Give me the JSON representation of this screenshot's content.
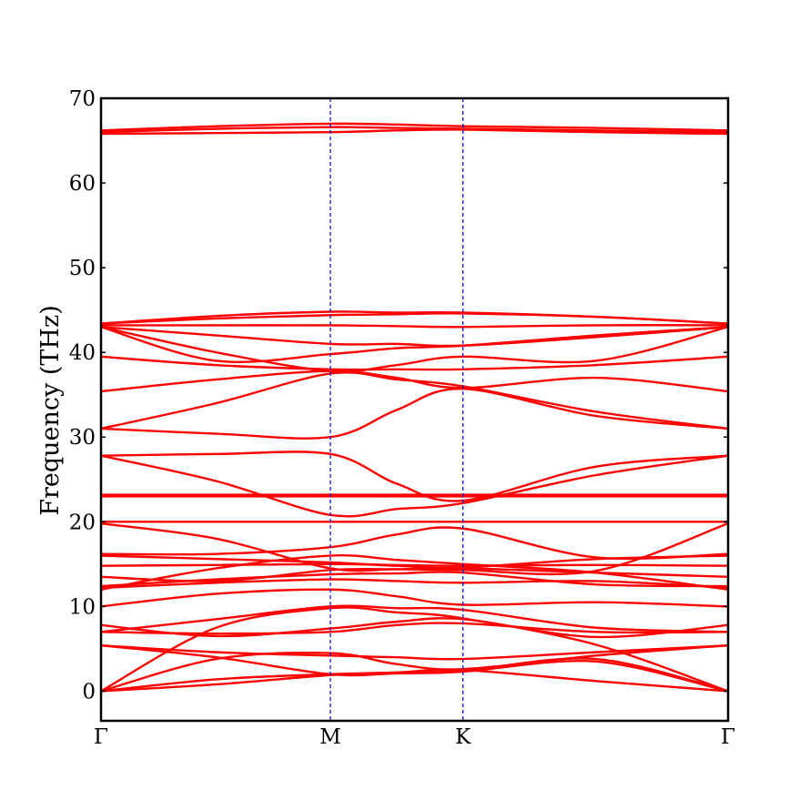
{
  "chart_data": {
    "type": "line",
    "title": "",
    "xlabel": "",
    "ylabel": "Frequency (THz)",
    "ylim": [
      -3.5,
      70
    ],
    "xlim": [
      0,
      4.73
    ],
    "yticks": [
      0,
      10,
      20,
      30,
      40,
      50,
      60,
      70
    ],
    "grid": false,
    "legend": "none",
    "high_symmetry_points": [
      {
        "label": "Γ",
        "x": 0
      },
      {
        "label": "M",
        "x": 1.73
      },
      {
        "label": "K",
        "x": 2.73
      },
      {
        "label": "Γ",
        "x": 4.73
      }
    ],
    "colors": {
      "bands": "#ff0000",
      "kpoint_lines": "#0000cc",
      "axes": "#000000"
    },
    "series": [
      {
        "x": [
          0,
          0.87,
          1.73,
          2.23,
          2.73,
          3.73,
          4.73
        ],
        "values": [
          0,
          0.8,
          1.9,
          2.2,
          2.5,
          1.2,
          0
        ]
      },
      {
        "x": [
          0,
          0.87,
          1.73,
          2.23,
          2.73,
          3.73,
          4.73
        ],
        "values": [
          0,
          1.4,
          2.0,
          2.2,
          2.4,
          3.8,
          0
        ]
      },
      {
        "x": [
          0,
          0.87,
          1.73,
          2.23,
          2.73,
          3.73,
          4.73
        ],
        "values": [
          0,
          3.8,
          4.5,
          3.2,
          2.6,
          4.2,
          5.4
        ]
      },
      {
        "x": [
          0,
          0.87,
          1.73,
          2.23,
          2.73,
          3.73,
          4.73
        ],
        "values": [
          5.4,
          4.6,
          4.2,
          4.0,
          3.8,
          4.6,
          5.4
        ]
      },
      {
        "x": [
          0,
          0.87,
          1.73,
          2.23,
          2.73,
          3.73,
          4.73
        ],
        "values": [
          5.4,
          4.0,
          2.0,
          2.1,
          2.3,
          3.5,
          0
        ]
      },
      {
        "x": [
          0,
          0.87,
          1.73,
          2.23,
          2.73,
          3.73,
          4.73
        ],
        "values": [
          7.8,
          6.5,
          7.4,
          8.2,
          8.5,
          6.4,
          7.8
        ]
      },
      {
        "x": [
          0,
          0.87,
          1.73,
          2.23,
          2.73,
          3.73,
          4.73
        ],
        "values": [
          7.0,
          6.8,
          7.0,
          7.8,
          8.0,
          7.0,
          7.0
        ]
      },
      {
        "x": [
          0,
          0.87,
          1.73,
          2.23,
          2.73,
          3.73,
          4.73
        ],
        "values": [
          0,
          7.5,
          9.8,
          9.3,
          8.6,
          5.5,
          0
        ]
      },
      {
        "x": [
          0,
          0.87,
          1.73,
          2.23,
          2.73,
          3.73,
          4.73
        ],
        "values": [
          7.0,
          8.5,
          10.0,
          9.8,
          9.6,
          7.5,
          7.0
        ]
      },
      {
        "x": [
          0,
          0.87,
          1.73,
          2.23,
          2.73,
          3.73,
          4.73
        ],
        "values": [
          10.0,
          11.5,
          12.0,
          11.2,
          10.2,
          10.5,
          10.0
        ]
      },
      {
        "x": [
          0,
          0.87,
          1.73,
          2.23,
          2.73,
          3.73,
          4.73
        ],
        "values": [
          12.2,
          12.8,
          13.2,
          13.0,
          12.8,
          13.0,
          12.2
        ]
      },
      {
        "x": [
          0,
          0.87,
          1.73,
          2.23,
          2.73,
          3.73,
          4.73
        ],
        "values": [
          12.4,
          13.2,
          13.8,
          13.9,
          14.0,
          12.6,
          12.4
        ]
      },
      {
        "x": [
          0,
          0.87,
          1.73,
          2.23,
          2.73,
          3.73,
          4.73
        ],
        "values": [
          13.5,
          13.0,
          14.3,
          14.4,
          14.5,
          14.0,
          13.5
        ]
      },
      {
        "x": [
          0,
          0.87,
          1.73,
          2.23,
          2.73,
          3.73,
          4.73
        ],
        "values": [
          14.8,
          14.9,
          15.0,
          14.9,
          14.8,
          14.9,
          14.8
        ]
      },
      {
        "x": [
          0,
          0.87,
          1.73,
          2.23,
          2.73,
          3.73,
          4.73
        ],
        "values": [
          16.0,
          15.6,
          15.2,
          14.8,
          14.6,
          15.6,
          16.0
        ]
      },
      {
        "x": [
          0,
          0.87,
          1.73,
          2.23,
          2.73,
          3.73,
          4.73
        ],
        "values": [
          12.0,
          14.5,
          16.0,
          15.5,
          15.0,
          14.0,
          12.0
        ]
      },
      {
        "x": [
          0,
          0.87,
          1.73,
          2.23,
          2.73,
          3.73,
          4.73
        ],
        "values": [
          16.2,
          16.2,
          17.0,
          18.5,
          19.2,
          15.8,
          16.2
        ]
      },
      {
        "x": [
          0,
          0.87,
          1.73,
          2.23,
          2.73,
          3.73,
          4.73
        ],
        "values": [
          19.8,
          18.0,
          14.5,
          14.4,
          14.3,
          14.2,
          19.8
        ]
      },
      {
        "x": [
          0,
          0.87,
          1.73,
          2.23,
          2.73,
          3.73,
          4.73
        ],
        "values": [
          20.0,
          20.0,
          20.0,
          20.0,
          20.0,
          20.0,
          20.0
        ]
      },
      {
        "x": [
          0,
          0.87,
          1.73,
          2.23,
          2.73,
          3.73,
          4.73
        ],
        "values": [
          23.0,
          23.0,
          23.0,
          23.0,
          23.0,
          23.0,
          23.0
        ]
      },
      {
        "x": [
          0,
          0.87,
          1.73,
          2.23,
          2.73,
          3.73,
          4.73
        ],
        "values": [
          23.2,
          23.2,
          23.2,
          23.2,
          23.2,
          23.2,
          23.2
        ]
      },
      {
        "x": [
          0,
          0.87,
          1.73,
          2.23,
          2.73,
          3.73,
          4.73
        ],
        "values": [
          27.8,
          24.8,
          20.8,
          21.5,
          22.2,
          25.5,
          27.8
        ]
      },
      {
        "x": [
          0,
          0.87,
          1.73,
          2.23,
          2.73,
          3.73,
          4.73
        ],
        "values": [
          27.8,
          28.0,
          28.0,
          24.5,
          22.5,
          26.5,
          27.8
        ]
      },
      {
        "x": [
          0,
          0.87,
          1.73,
          2.23,
          2.73,
          3.73,
          4.73
        ],
        "values": [
          31.0,
          30.4,
          30.0,
          33.2,
          35.7,
          32.5,
          31.0
        ]
      },
      {
        "x": [
          0,
          0.87,
          1.73,
          2.23,
          2.73,
          3.73,
          4.73
        ],
        "values": [
          31.0,
          34.0,
          37.5,
          36.8,
          36.0,
          33.0,
          31.0
        ]
      },
      {
        "x": [
          0,
          0.87,
          1.73,
          2.23,
          2.73,
          3.73,
          4.73
        ],
        "values": [
          35.4,
          36.8,
          37.8,
          37.0,
          35.8,
          37.0,
          35.4
        ]
      },
      {
        "x": [
          0,
          0.87,
          1.73,
          2.23,
          2.73,
          3.73,
          4.73
        ],
        "values": [
          39.5,
          38.5,
          38.0,
          38.0,
          38.0,
          38.5,
          39.5
        ]
      },
      {
        "x": [
          0,
          0.87,
          1.73,
          2.23,
          2.73,
          3.73,
          4.73
        ],
        "values": [
          43.0,
          40.0,
          37.8,
          38.5,
          39.5,
          39.0,
          43.0
        ]
      },
      {
        "x": [
          0,
          0.87,
          1.73,
          2.23,
          2.73,
          3.73,
          4.73
        ],
        "values": [
          43.0,
          39.0,
          39.8,
          40.5,
          40.8,
          42.0,
          43.0
        ]
      },
      {
        "x": [
          0,
          0.87,
          1.73,
          2.23,
          2.73,
          3.73,
          4.73
        ],
        "values": [
          43.0,
          42.0,
          41.0,
          41.0,
          40.8,
          41.8,
          43.0
        ]
      },
      {
        "x": [
          0,
          0.87,
          1.73,
          2.23,
          2.73,
          3.73,
          4.73
        ],
        "values": [
          43.2,
          43.2,
          43.2,
          43.1,
          43.0,
          43.2,
          43.2
        ]
      },
      {
        "x": [
          0,
          0.87,
          1.73,
          2.23,
          2.73,
          3.73,
          4.73
        ],
        "values": [
          43.4,
          44.0,
          44.4,
          44.5,
          44.6,
          44.2,
          43.4
        ]
      },
      {
        "x": [
          0,
          0.87,
          1.73,
          2.23,
          2.73,
          3.73,
          4.73
        ],
        "values": [
          43.4,
          44.3,
          44.8,
          44.7,
          44.7,
          44.2,
          43.4
        ]
      },
      {
        "x": [
          0,
          0.87,
          1.73,
          2.23,
          2.73,
          3.73,
          4.73
        ],
        "values": [
          65.8,
          65.9,
          66.0,
          66.2,
          66.3,
          66.0,
          65.8
        ]
      },
      {
        "x": [
          0,
          0.87,
          1.73,
          2.23,
          2.73,
          3.73,
          4.73
        ],
        "values": [
          66.0,
          66.4,
          66.6,
          66.5,
          66.4,
          66.2,
          66.0
        ]
      },
      {
        "x": [
          0,
          0.87,
          1.73,
          2.23,
          2.73,
          3.73,
          4.73
        ],
        "values": [
          66.2,
          66.7,
          67.0,
          66.9,
          66.7,
          66.5,
          66.2
        ]
      }
    ]
  }
}
